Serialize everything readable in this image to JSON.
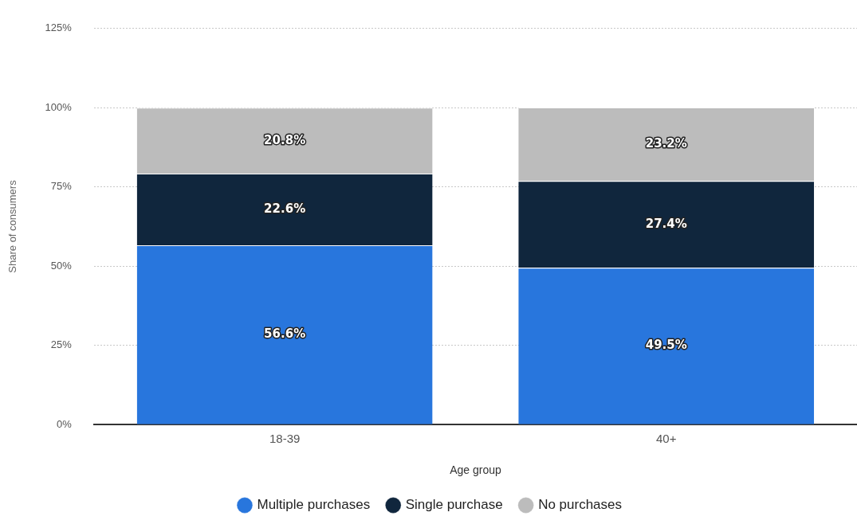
{
  "chart_data": {
    "type": "bar",
    "stacked": true,
    "xlabel": "Age group",
    "ylabel": "Share of consumers",
    "categories": [
      "18-39",
      "40+"
    ],
    "series": [
      {
        "name": "Multiple purchases",
        "color": "#2876dd",
        "values": [
          56.6,
          49.5
        ]
      },
      {
        "name": "Single purchase",
        "color": "#10263d",
        "values": [
          22.6,
          27.4
        ]
      },
      {
        "name": "No purchases",
        "color": "#bcbcbc",
        "values": [
          20.8,
          23.2
        ]
      }
    ],
    "ylim": [
      0,
      125
    ],
    "yticks": [
      {
        "value": 0,
        "label": "0%"
      },
      {
        "value": 25,
        "label": "25%"
      },
      {
        "value": 50,
        "label": "50%"
      },
      {
        "value": 75,
        "label": "75%"
      },
      {
        "value": 100,
        "label": "100%"
      },
      {
        "value": 125,
        "label": "125%"
      }
    ],
    "value_labels": [
      [
        "56.6%",
        "49.5%"
      ],
      [
        "22.6%",
        "27.4%"
      ],
      [
        "20.8%",
        "23.2%"
      ]
    ],
    "grid": "y",
    "legend": "bottom"
  }
}
